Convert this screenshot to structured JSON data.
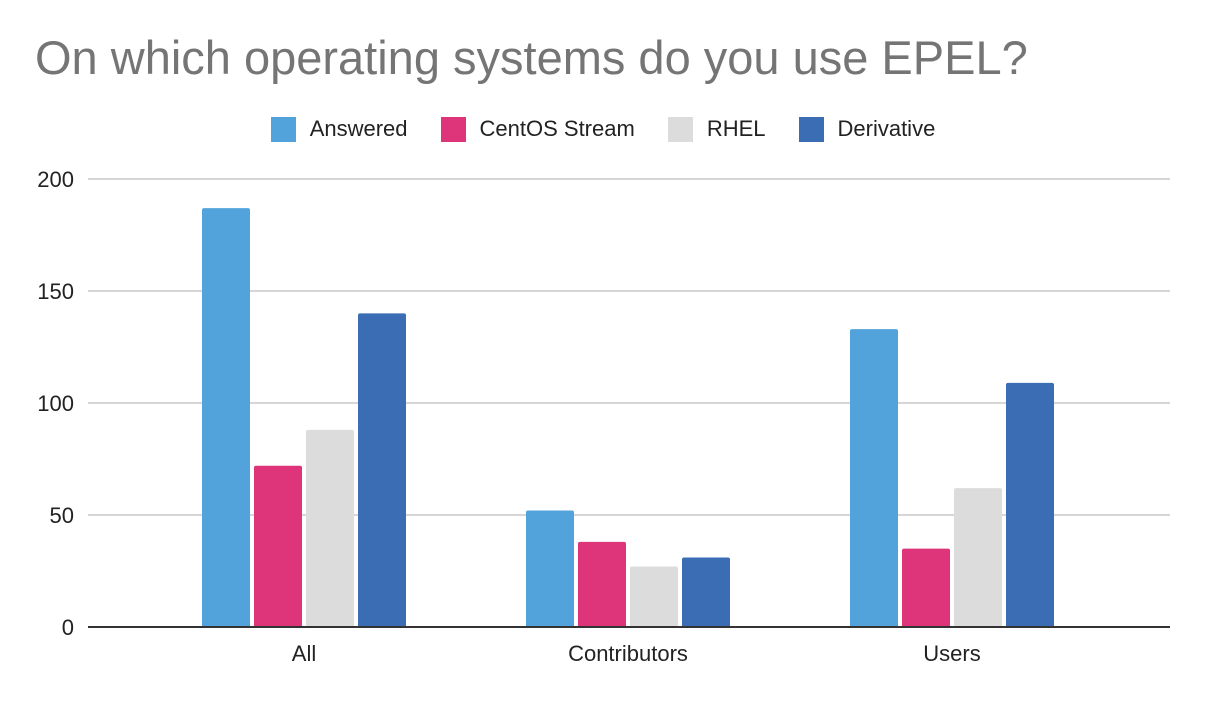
{
  "chart_data": {
    "type": "bar",
    "title": "On which operating systems do you use EPEL?",
    "xlabel": "",
    "ylabel": "",
    "categories": [
      "All",
      "Contributors",
      "Users"
    ],
    "series": [
      {
        "name": "Answered",
        "color": "#52a2db",
        "values": [
          187,
          52,
          133
        ]
      },
      {
        "name": "CentOS Stream",
        "color": "#de3479",
        "values": [
          72,
          38,
          35
        ]
      },
      {
        "name": "RHEL",
        "color": "#dcdcdc",
        "values": [
          88,
          27,
          62
        ]
      },
      {
        "name": "Derivative",
        "color": "#3a6db3",
        "values": [
          140,
          31,
          109
        ]
      }
    ],
    "ylim": [
      0,
      200
    ],
    "yticks": [
      0,
      50,
      100,
      150,
      200
    ],
    "grid": true,
    "legend_position": "top-center"
  }
}
